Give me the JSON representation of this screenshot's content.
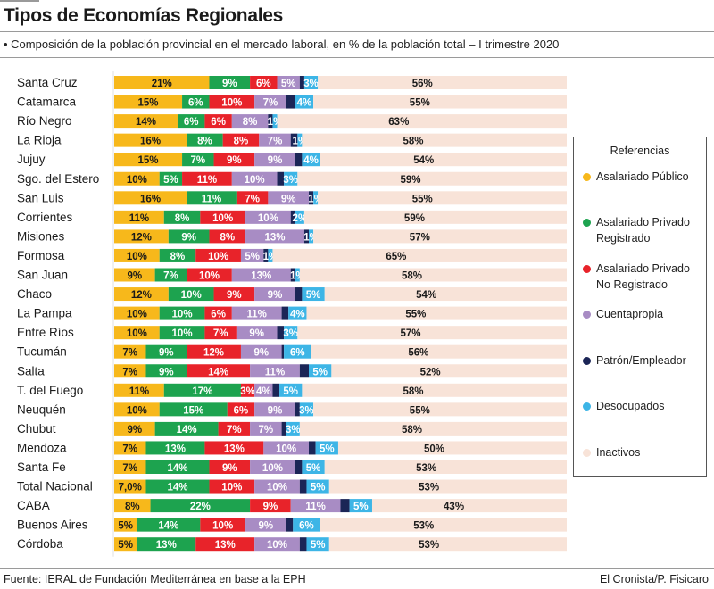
{
  "header": {
    "title": "Tipos de Economías Regionales",
    "subtitle": "• Composición de la población provincial en el mercado laboral, en % de la población total – I trimestre 2020"
  },
  "footer": {
    "source": "Fuente: IERAL de Fundación Mediterránea en base a la EPH",
    "credit": "El Cronista/P. Fisicaro"
  },
  "legend": {
    "title": "Referencias",
    "items": [
      {
        "label": "Asalariado Público",
        "color": "#F7B81B"
      },
      {
        "label": "Asalariado Privado Registrado",
        "color": "#1DA34F"
      },
      {
        "label": "Asalariado Privado No Registrado",
        "color": "#E8232A"
      },
      {
        "label": "Cuentapropia",
        "color": "#A88CC4"
      },
      {
        "label": "Patrón/Empleador",
        "color": "#1B2556"
      },
      {
        "label": "Desocupados",
        "color": "#3DB5E6"
      },
      {
        "label": "Inactivos",
        "color": "#F8E3D8"
      }
    ]
  },
  "chart_data": {
    "type": "bar",
    "orientation": "horizontal",
    "stacked": true,
    "title": "Tipos de Economías Regionales",
    "subtitle": "Composición de la población provincial en el mercado laboral, en % de la población total – I trimestre 2020",
    "xlabel": "",
    "ylabel": "",
    "xlim": [
      0,
      100
    ],
    "grid": false,
    "legend_position": "right",
    "categories": [
      "Santa Cruz",
      "Catamarca",
      "Río Negro",
      "La Rioja",
      "Jujuy",
      "Sgo. del Estero",
      "San Luis",
      "Corrientes",
      "Misiones",
      "Formosa",
      "San Juan",
      "Chaco",
      "La Pampa",
      "Entre Ríos",
      "Tucumán",
      "Salta",
      "T. del Fuego",
      "Neuquén",
      "Chubut",
      "Mendoza",
      "Santa Fe",
      "Total Nacional",
      "CABA",
      "Buenos Aires",
      "Córdoba"
    ],
    "series": [
      {
        "name": "Asalariado Público",
        "color": "#F7B81B",
        "label_color": "#1a1a1a",
        "values": [
          21,
          15,
          14,
          16,
          15,
          10,
          16,
          11,
          12,
          10,
          9,
          12,
          10,
          10,
          7,
          7,
          11,
          10,
          9,
          7,
          7,
          7.0,
          8,
          5,
          5
        ],
        "labels": [
          "21%",
          "15%",
          "14%",
          "16%",
          "15%",
          "10%",
          "16%",
          "11%",
          "12%",
          "10%",
          "9%",
          "12%",
          "10%",
          "10%",
          "7%",
          "7%",
          "11%",
          "10%",
          "9%",
          "7%",
          "7%",
          "7,0%",
          "8%",
          "5%",
          "5%"
        ]
      },
      {
        "name": "Asalariado Privado Registrado",
        "color": "#1DA34F",
        "label_color": "#ffffff",
        "values": [
          9,
          6,
          6,
          8,
          7,
          5,
          11,
          8,
          9,
          8,
          7,
          10,
          10,
          10,
          9,
          9,
          17,
          15,
          14,
          13,
          14,
          14,
          22,
          14,
          13
        ],
        "labels": [
          "9%",
          "6%",
          "6%",
          "8%",
          "7%",
          "5%",
          "11%",
          "8%",
          "9%",
          "8%",
          "7%",
          "10%",
          "10%",
          "10%",
          "9%",
          "9%",
          "17%",
          "15%",
          "14%",
          "13%",
          "14%",
          "14%",
          "22%",
          "14%",
          "13%"
        ]
      },
      {
        "name": "Asalariado Privado No Registrado",
        "color": "#E8232A",
        "label_color": "#ffffff",
        "values": [
          6,
          10,
          6,
          8,
          9,
          11,
          7,
          10,
          8,
          10,
          10,
          9,
          6,
          7,
          12,
          14,
          3,
          6,
          7,
          13,
          9,
          10,
          9,
          10,
          13
        ],
        "labels": [
          "6%",
          "10%",
          "6%",
          "8%",
          "9%",
          "11%",
          "7%",
          "10%",
          "8%",
          "10%",
          "10%",
          "9%",
          "6%",
          "7%",
          "12%",
          "14%",
          "3%",
          "6%",
          "7%",
          "13%",
          "9%",
          "10%",
          "9%",
          "10%",
          "13%"
        ]
      },
      {
        "name": "Cuentapropia",
        "color": "#A88CC4",
        "label_color": "#ffffff",
        "values": [
          5,
          7,
          8,
          7,
          9,
          10,
          9,
          10,
          13,
          5,
          13,
          9,
          11,
          9,
          9,
          11,
          4,
          9,
          7,
          10,
          10,
          10,
          11,
          9,
          10
        ],
        "labels": [
          "5%",
          "7%",
          "8%",
          "7%",
          "9%",
          "10%",
          "9%",
          "10%",
          "13%",
          "5%",
          "13%",
          "9%",
          "11%",
          "9%",
          "9%",
          "11%",
          "4%",
          "9%",
          "7%",
          "10%",
          "10%",
          "10%",
          "11%",
          "9%",
          "10%"
        ]
      },
      {
        "name": "Patrón/Empleador",
        "color": "#1B2556",
        "label_color": "#ffffff",
        "values": [
          1,
          2,
          1,
          1.5,
          1.5,
          1.5,
          1,
          1,
          1,
          1,
          1,
          1.5,
          1.5,
          1.5,
          0.5,
          2,
          1.5,
          1,
          1,
          1.5,
          1.5,
          1.5,
          2,
          1.5,
          1.5
        ],
        "labels": [
          "",
          "",
          "",
          "",
          "",
          "",
          "",
          "",
          "",
          "",
          "",
          "",
          "",
          "",
          "",
          "",
          "",
          "",
          "",
          "",
          "",
          "",
          "",
          "",
          ""
        ]
      },
      {
        "name": "Desocupados",
        "color": "#3DB5E6",
        "label_color": "#ffffff",
        "values": [
          3,
          4,
          1,
          1,
          4,
          3,
          1,
          2,
          1,
          1,
          1,
          5,
          4,
          3,
          6,
          5,
          5,
          3,
          3,
          5,
          5,
          5,
          5,
          6,
          5
        ],
        "labels": [
          "3%",
          "4%",
          "1%",
          "1%",
          "4%",
          "3%",
          "1%",
          "2%",
          "1%",
          "1%",
          "1%",
          "5%",
          "4%",
          "3%",
          "6%",
          "5%",
          "5%",
          "3%",
          "3%",
          "5%",
          "5%",
          "5%",
          "5%",
          "6%",
          "5%"
        ]
      },
      {
        "name": "Inactivos",
        "color": "#F8E3D8",
        "label_color": "#1a1a1a",
        "values": [
          56,
          55,
          63,
          58,
          54,
          59,
          55,
          59,
          57,
          65,
          58,
          54,
          55,
          57,
          56,
          52,
          58,
          55,
          58,
          50,
          53,
          53,
          43,
          53,
          53
        ],
        "labels": [
          "56%",
          "55%",
          "63%",
          "58%",
          "54%",
          "59%",
          "55%",
          "59%",
          "57%",
          "65%",
          "58%",
          "54%",
          "55%",
          "57%",
          "56%",
          "52%",
          "58%",
          "55%",
          "58%",
          "50%",
          "53%",
          "53%",
          "43%",
          "53%",
          "53%"
        ]
      }
    ]
  }
}
